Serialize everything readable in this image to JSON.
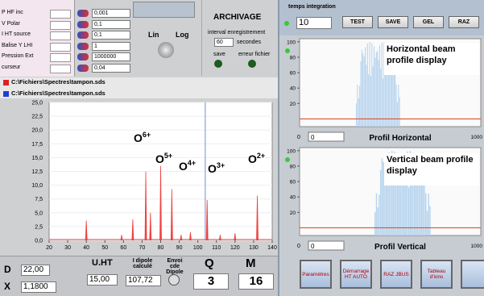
{
  "params": [
    {
      "name": "P HF inc",
      "value": "0,001"
    },
    {
      "name": "V Polar",
      "value": "0,1"
    },
    {
      "name": "I HT source",
      "value": "0,1"
    },
    {
      "name": "Balise Y LHI",
      "value": "1"
    },
    {
      "name": "Pression Ext",
      "value": "1000000"
    },
    {
      "name": "curseur",
      "value": "0,04"
    }
  ],
  "scale_toggle": {
    "left": "Lin",
    "right": "Log"
  },
  "archive": {
    "title": "ARCHIVAGE",
    "interval_label": "interval enregistrement",
    "interval": "60",
    "unit": "secondes",
    "save": "save",
    "error": "erreur fichier"
  },
  "files": [
    "C:\\Fichiers\\Spectres\\tampon.sds",
    "C:\\Fichiers\\Spectres\\tampon.sds"
  ],
  "spectrum": {
    "xlim": [
      20,
      140
    ],
    "ylim": [
      0,
      25
    ],
    "xticks": [
      20,
      30,
      40,
      50,
      60,
      70,
      80,
      90,
      100,
      110,
      120,
      130,
      140
    ],
    "yticks": [
      {
        "value": 0,
        "label": "0,0"
      },
      {
        "value": 2.5,
        "label": "2,5"
      },
      {
        "value": 5,
        "label": "5,0"
      },
      {
        "value": 7.5,
        "label": "7,5"
      },
      {
        "value": 10,
        "label": "10,0"
      },
      {
        "value": 12.5,
        "label": "12,5"
      },
      {
        "value": 15,
        "label": "15,0"
      },
      {
        "value": 17.5,
        "label": "17,5"
      },
      {
        "value": 20,
        "label": "20,0"
      },
      {
        "value": 22.5,
        "label": "22,5"
      },
      {
        "value": 25,
        "label": "25,0"
      }
    ],
    "peaks": {
      "x": [
        40,
        59,
        65,
        72,
        74.5,
        80,
        86,
        91,
        96,
        105,
        112,
        120,
        132
      ],
      "values": [
        3.6,
        1,
        3.8,
        12.5,
        5,
        13.5,
        9.3,
        1,
        1.5,
        7.3,
        1,
        1.3,
        8.1
      ]
    },
    "cursor": 104,
    "annotations": [
      {
        "ion": "O",
        "charge": "6+"
      },
      {
        "ion": "O",
        "charge": "5+"
      },
      {
        "ion": "O",
        "charge": "4+"
      },
      {
        "ion": "O",
        "charge": "3+"
      },
      {
        "ion": "O",
        "charge": "2+"
      }
    ]
  },
  "controls": {
    "D": {
      "label": "D",
      "value": "22,00"
    },
    "X": {
      "label": "X",
      "value": "1,1800"
    },
    "UHT": {
      "label": "U.HT",
      "value": "15,00"
    },
    "dipole": {
      "label": "I dipole calculé",
      "value": "107,72"
    },
    "send": {
      "label": "Envoi cde Dipole"
    },
    "Q": {
      "label": "Q",
      "value": "3"
    },
    "M": {
      "label": "M",
      "value": "16"
    }
  },
  "integration": {
    "label": "temps integration",
    "value": "10"
  },
  "buttons": [
    "TEST",
    "SAVE",
    "GEL",
    "RAZ"
  ],
  "profiles": [
    {
      "label": "Horizontal beam profile display",
      "axis_title": "Profil Horizontal",
      "xmin": "0",
      "input": "0",
      "xmax": "1000",
      "ylim": [
        -10,
        104
      ],
      "yticks": [
        20,
        40,
        60,
        80,
        100
      ]
    },
    {
      "label": "Vertical beam profile display",
      "axis_title": "Profil Vertical",
      "xmin": "0",
      "input": "0",
      "xmax": "1000",
      "ylim": [
        -10,
        104
      ],
      "yticks": [
        20,
        40,
        60,
        80,
        100
      ]
    }
  ],
  "actions": [
    "Paramètres",
    "Démarrage HT AUTO",
    "RAZ JBUS",
    "Tableau d'ions"
  ]
}
